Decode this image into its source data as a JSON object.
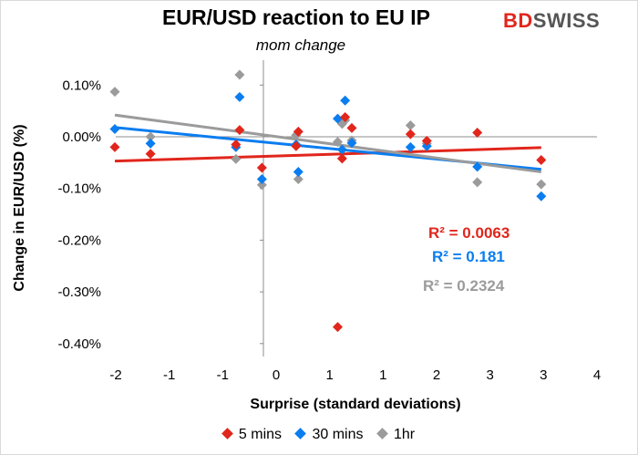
{
  "chart_data": {
    "type": "scatter",
    "title": "EUR/USD reaction to EU IP",
    "subtitle": "mom change",
    "xlabel": "Surprise (standard deviations)",
    "ylabel": "Change in EUR/USD  (%)",
    "xlim": [
      -2,
      4
    ],
    "ylim": [
      -0.4,
      0.15
    ],
    "x_ticks": [
      "-2",
      "-1",
      "-1",
      "0",
      "1",
      "1",
      "2",
      "3",
      "3",
      "4"
    ],
    "y_ticks": [
      "0.10%",
      "0.00%",
      "-0.10%",
      "-0.20%",
      "-0.30%",
      "-0.40%"
    ],
    "y_tick_values": [
      0.1,
      0.0,
      -0.1,
      -0.2,
      -0.3,
      -0.4
    ],
    "series": [
      {
        "name": "5 mins",
        "color": "#e1261c",
        "points": [
          [
            -2.0,
            -0.02
          ],
          [
            -1.52,
            -0.033
          ],
          [
            -0.37,
            -0.015
          ],
          [
            -0.32,
            0.013
          ],
          [
            -0.02,
            -0.06
          ],
          [
            0.44,
            -0.018
          ],
          [
            0.47,
            0.01
          ],
          [
            1.0,
            -0.368
          ],
          [
            1.06,
            -0.042
          ],
          [
            1.1,
            0.038
          ],
          [
            1.19,
            0.017
          ],
          [
            1.98,
            0.005
          ],
          [
            2.2,
            -0.008
          ],
          [
            2.88,
            0.008
          ],
          [
            3.74,
            -0.045
          ]
        ],
        "trend": [
          [
            -2.0,
            -0.047
          ],
          [
            3.74,
            -0.021
          ]
        ],
        "r2": "R² = 0.0063"
      },
      {
        "name": "30 mins",
        "color": "#0a7df0",
        "points": [
          [
            -2.0,
            0.015
          ],
          [
            -1.52,
            -0.013
          ],
          [
            -0.37,
            -0.02
          ],
          [
            -0.32,
            0.077
          ],
          [
            -0.02,
            -0.082
          ],
          [
            0.44,
            -0.015
          ],
          [
            0.47,
            -0.068
          ],
          [
            1.0,
            0.035
          ],
          [
            1.06,
            -0.025
          ],
          [
            1.1,
            0.07
          ],
          [
            1.19,
            -0.012
          ],
          [
            1.98,
            -0.02
          ],
          [
            2.2,
            -0.018
          ],
          [
            2.88,
            -0.058
          ],
          [
            3.74,
            -0.115
          ]
        ],
        "trend": [
          [
            -2.0,
            0.018
          ],
          [
            3.74,
            -0.063
          ]
        ],
        "r2": "R² = 0.181"
      },
      {
        "name": "1hr",
        "color": "#9b9b9b",
        "points": [
          [
            -2.0,
            0.087
          ],
          [
            -1.52,
            0.0
          ],
          [
            -0.37,
            -0.043
          ],
          [
            -0.32,
            0.12
          ],
          [
            -0.02,
            -0.093
          ],
          [
            0.44,
            0.003
          ],
          [
            0.47,
            -0.082
          ],
          [
            1.0,
            -0.01
          ],
          [
            1.06,
            0.025
          ],
          [
            1.1,
            0.032
          ],
          [
            1.19,
            -0.007
          ],
          [
            1.98,
            0.022
          ],
          [
            2.2,
            -0.013
          ],
          [
            2.88,
            -0.088
          ],
          [
            3.74,
            -0.092
          ]
        ],
        "trend": [
          [
            -2.0,
            0.042
          ],
          [
            3.74,
            -0.068
          ]
        ],
        "r2": "R² = 0.2324"
      }
    ],
    "legend_position": "bottom",
    "grid": false
  },
  "brand": {
    "part1": "BD",
    "part2": "SWISS"
  }
}
